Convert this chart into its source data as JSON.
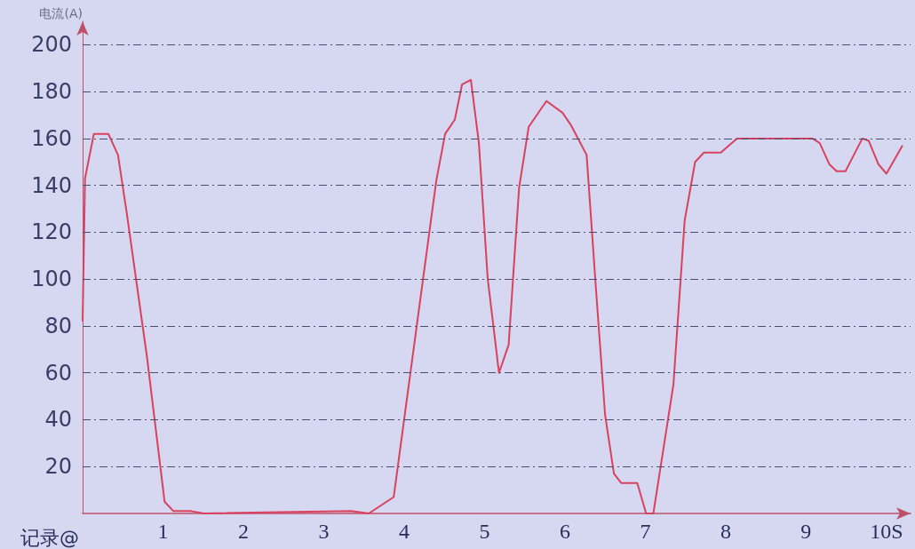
{
  "chart_data": {
    "type": "line",
    "xlabel": "记录@",
    "ylabel": "电流(A)",
    "x": [
      0,
      0.03,
      0.14,
      0.32,
      0.44,
      0.55,
      0.8,
      1.02,
      1.13,
      1.35,
      1.51,
      3.34,
      3.56,
      3.87,
      4.4,
      4.51,
      4.63,
      4.72,
      4.83,
      4.93,
      5.04,
      5.18,
      5.3,
      5.43,
      5.55,
      5.77,
      5.97,
      6.07,
      6.27,
      6.39,
      6.5,
      6.61,
      6.7,
      6.9,
      7.01,
      7.1,
      7.35,
      7.49,
      7.62,
      7.73,
      7.94,
      8.14,
      9.08,
      9.17,
      9.29,
      9.38,
      9.49,
      9.7,
      9.78,
      9.9,
      10,
      10.2
    ],
    "series": [
      {
        "color": "#d9415f",
        "values": [
          82,
          143,
          162,
          162,
          153,
          128,
          67,
          5,
          1,
          1,
          0,
          1,
          0,
          7,
          142,
          162,
          168,
          183,
          185,
          158,
          100,
          60,
          72,
          139,
          165,
          176,
          171,
          166,
          153,
          94,
          42,
          17,
          13,
          13,
          0,
          0,
          55,
          125,
          150,
          154,
          154,
          160,
          160,
          158,
          149,
          146,
          146,
          160,
          159,
          149,
          145,
          157
        ]
      }
    ],
    "xlim": [
      0,
      10.3
    ],
    "xticks": [
      1,
      2,
      3,
      4,
      5,
      6,
      7,
      8,
      9,
      {
        "value": 10,
        "label": "10S"
      }
    ],
    "ylim": [
      0,
      210
    ],
    "yticks": [
      20,
      40,
      60,
      80,
      100,
      120,
      140,
      160,
      180,
      200
    ],
    "grid": "y",
    "marker": "none",
    "line_style": "solid"
  }
}
